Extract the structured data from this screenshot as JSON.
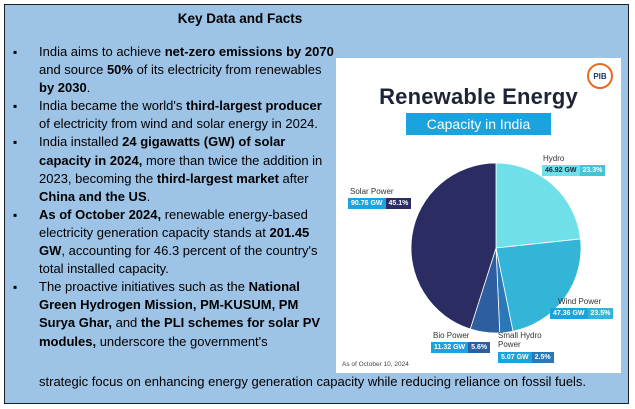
{
  "heading": "Key Data and Facts",
  "bullets": [
    [
      {
        "t": "India aims to achieve ",
        "b": false
      },
      {
        "t": "net-zero emissions by 2070",
        "b": true
      },
      {
        "t": " and source ",
        "b": false
      },
      {
        "t": "50%",
        "b": true
      },
      {
        "t": " of its electricity from renewables ",
        "b": false
      },
      {
        "t": "by 2030",
        "b": true
      },
      {
        "t": ".",
        "b": false
      }
    ],
    [
      {
        "t": "India became the world's ",
        "b": false
      },
      {
        "t": "third-largest producer",
        "b": true
      },
      {
        "t": " of electricity from wind and solar energy in 2024.",
        "b": false
      }
    ],
    [
      {
        "t": "India installed ",
        "b": false
      },
      {
        "t": "24 gigawatts (GW) of solar capacity in 2024,",
        "b": true
      },
      {
        "t": " more than twice the addition in 2023, becoming the ",
        "b": false
      },
      {
        "t": "third-largest market",
        "b": true
      },
      {
        "t": " after ",
        "b": false
      },
      {
        "t": "China and the US",
        "b": true
      },
      {
        "t": ".",
        "b": false
      }
    ],
    [
      {
        "t": "As of October 2024,",
        "b": true
      },
      {
        "t": " renewable energy-based electricity generation capacity stands at ",
        "b": false
      },
      {
        "t": "201.45 GW",
        "b": true
      },
      {
        "t": ", accounting for 46.3 percent of the country's total installed capacity.",
        "b": false
      }
    ],
    [
      {
        "t": " The proactive initiatives such as the ",
        "b": false
      },
      {
        "t": "National Green Hydrogen Mission, PM-KUSUM, PM Surya Ghar,",
        "b": true
      },
      {
        "t": " and ",
        "b": false
      },
      {
        "t": "the PLI schemes for solar PV modules,",
        "b": true
      },
      {
        "t": " underscore the government's",
        "b": false
      }
    ]
  ],
  "tail_text": "strategic focus on enhancing energy generation capacity while reducing reliance on fossil fuels.",
  "infographic": {
    "logo_text": "PIB",
    "title": "Renewable Energy",
    "subtitle": "Capacity in India",
    "footnote": "As of October 10, 2024",
    "colors": {
      "hydro": "#6fe0ea",
      "wind": "#33b5d8",
      "small_hydro": "#2a78b8",
      "bio": "#2d5fa0",
      "solar": "#2a2c62"
    }
  },
  "chart_data": {
    "type": "pie",
    "title": "Renewable Energy Capacity in India",
    "slices": [
      {
        "name": "Hydro",
        "gw": "46.92 GW",
        "pct": "23.3%",
        "value": 23.3
      },
      {
        "name": "Wind Power",
        "gw": "47.36 GW",
        "pct": "23.5%",
        "value": 23.5
      },
      {
        "name": "Small Hydro Power",
        "gw": "5.07 GW",
        "pct": "2.5%",
        "value": 2.5
      },
      {
        "name": "Bio Power",
        "gw": "11.32 GW",
        "pct": "5.6%",
        "value": 5.6
      },
      {
        "name": "Solar Power",
        "gw": "90.76 GW",
        "pct": "45.1%",
        "value": 45.1
      }
    ]
  }
}
